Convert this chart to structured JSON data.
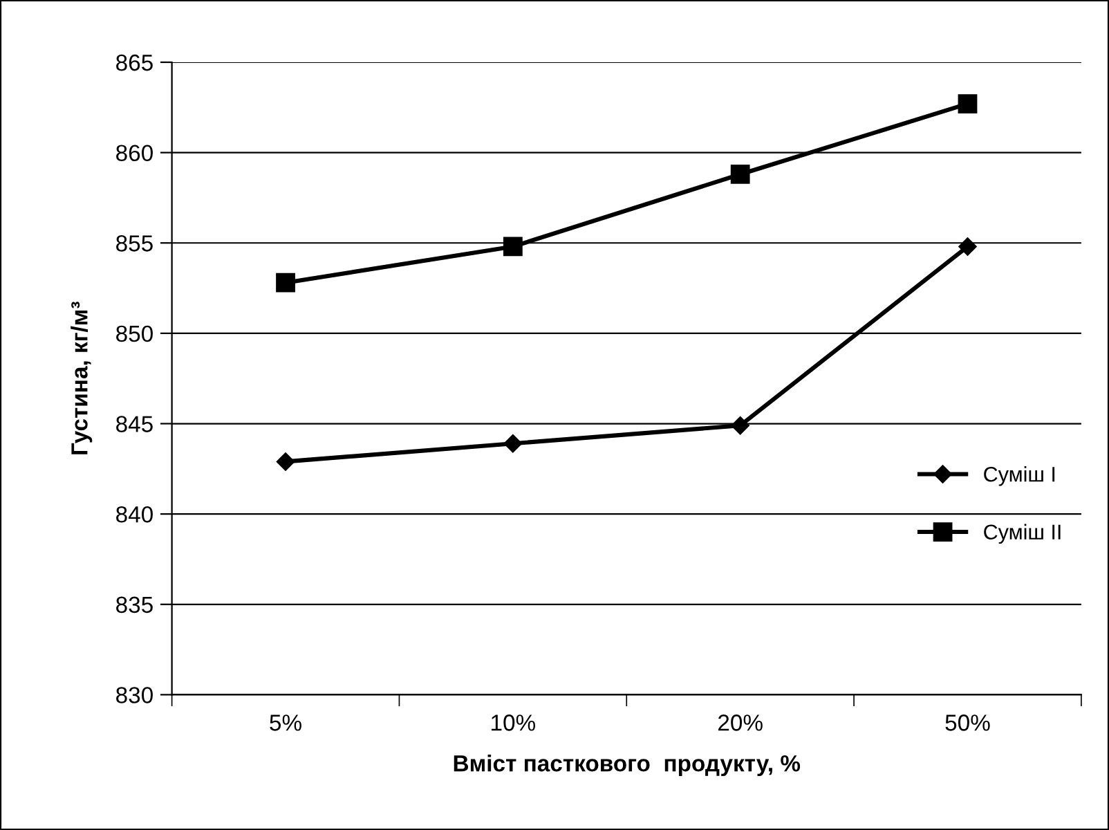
{
  "chart_data": {
    "type": "line",
    "xlabel": "Вміст пасткового  продукту, %",
    "ylabel": "Густина, кг/м³",
    "categories": [
      "5%",
      "10%",
      "20%",
      "50%"
    ],
    "series": [
      {
        "name": "Суміш I",
        "color": "#000000",
        "marker": "diamond",
        "values": [
          842.9,
          843.9,
          844.9,
          854.8
        ]
      },
      {
        "name": "Суміш II",
        "color": "#000000",
        "marker": "square",
        "values": [
          852.8,
          854.8,
          858.8,
          862.7
        ]
      }
    ],
    "ylim": [
      830,
      865
    ],
    "yticks": [
      830,
      835,
      840,
      845,
      850,
      855,
      860,
      865
    ],
    "grid": "y",
    "legend": "right",
    "line_style": "solid"
  }
}
